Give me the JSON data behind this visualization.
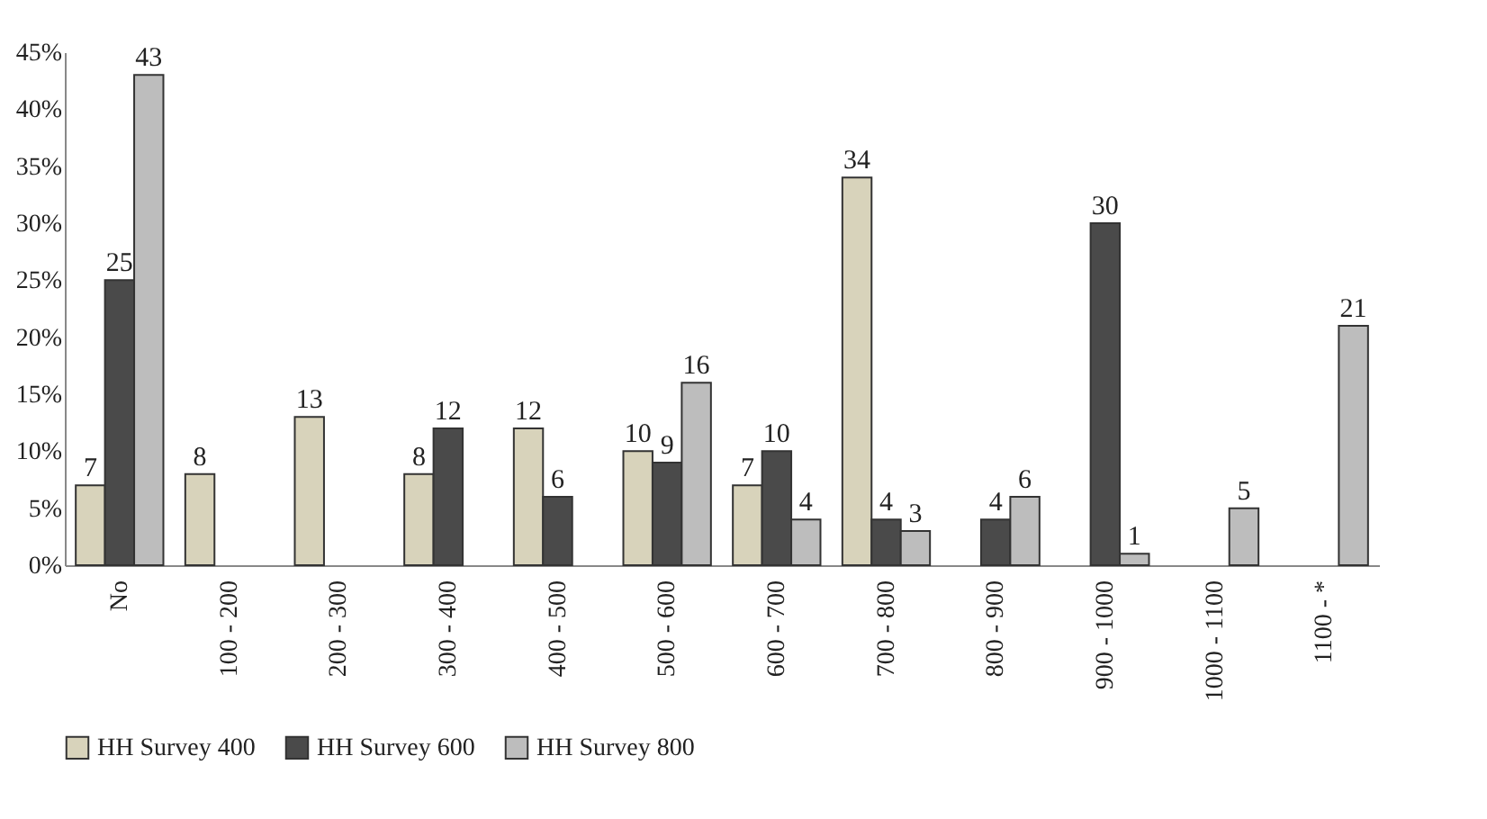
{
  "chart_data": {
    "type": "bar",
    "categories": [
      "No",
      "100 - 200",
      "200 - 300",
      "300 - 400",
      "400 - 500",
      "500 - 600",
      "600 - 700",
      "700 - 800",
      "800 - 900",
      "900 - 1000",
      "1000 - 1100",
      "1100 - *"
    ],
    "series": [
      {
        "name": "HH Survey 400",
        "color": "#d8d3bb",
        "values": [
          7,
          8,
          13,
          8,
          12,
          10,
          7,
          34,
          null,
          null,
          null,
          null
        ]
      },
      {
        "name": "HH Survey 600",
        "color": "#4a4a4a",
        "values": [
          25,
          null,
          null,
          12,
          6,
          9,
          10,
          4,
          4,
          30,
          null,
          null
        ]
      },
      {
        "name": "HH Survey 800",
        "color": "#bdbdbd",
        "values": [
          43,
          null,
          null,
          null,
          null,
          16,
          4,
          3,
          6,
          1,
          5,
          21
        ]
      }
    ],
    "ylim": [
      0,
      45
    ],
    "yticks": [
      {
        "value": 0,
        "label": "0%"
      },
      {
        "value": 5,
        "label": "5%"
      },
      {
        "value": 10,
        "label": "10%"
      },
      {
        "value": 15,
        "label": "15%"
      },
      {
        "value": 20,
        "label": "20%"
      },
      {
        "value": 25,
        "label": "25%"
      },
      {
        "value": 30,
        "label": "30%"
      },
      {
        "value": 35,
        "label": "35%"
      },
      {
        "value": 40,
        "label": "40%"
      },
      {
        "value": 45,
        "label": "45%"
      }
    ],
    "data_labels": true,
    "grid": false,
    "legend": "bottom"
  }
}
